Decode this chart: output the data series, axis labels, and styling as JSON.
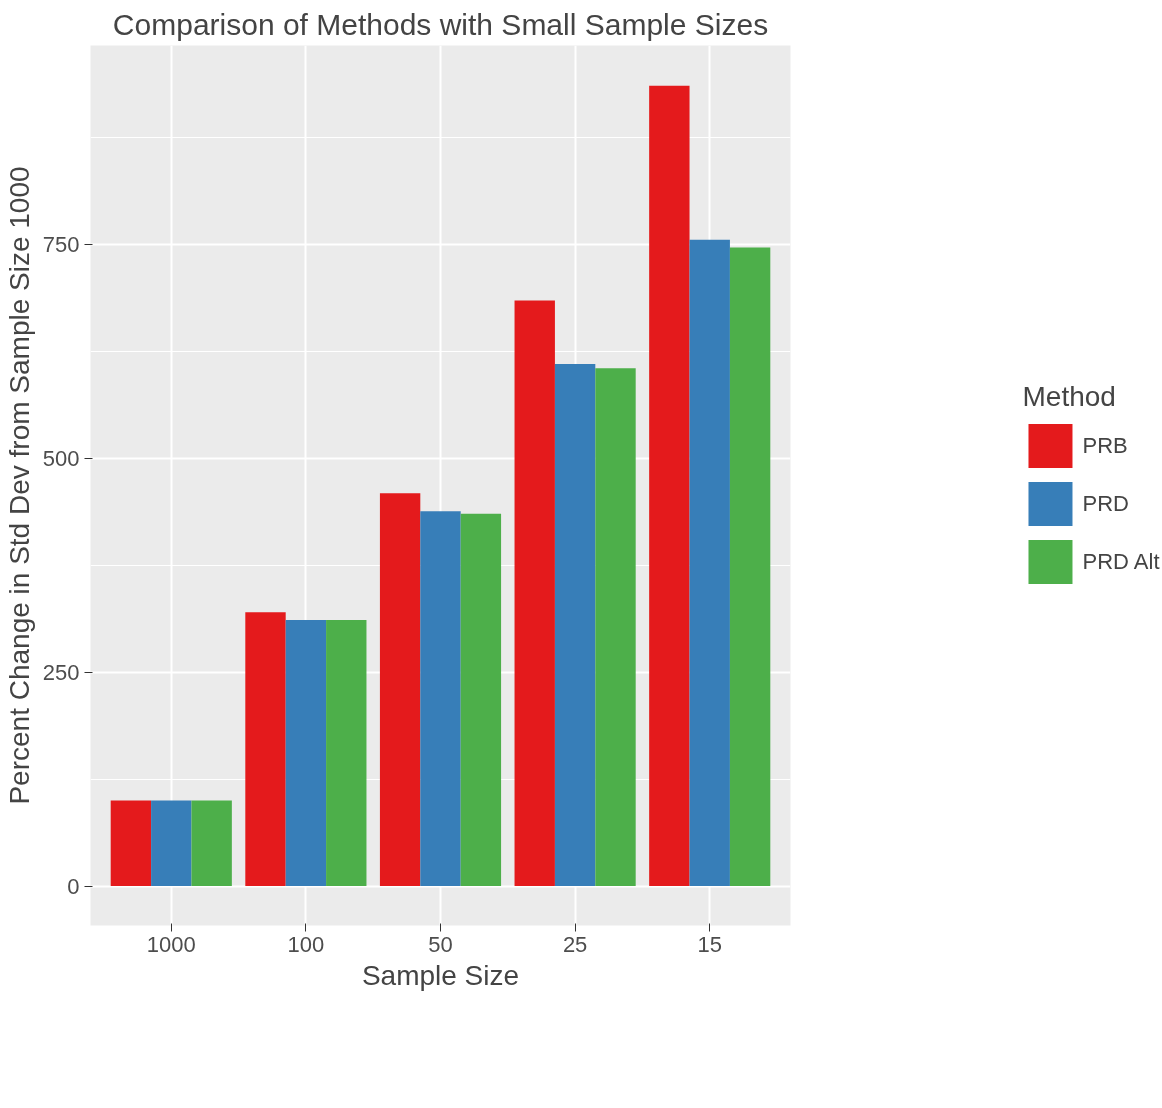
{
  "chart_data": {
    "type": "bar",
    "title": "Comparison of Methods with Small Sample Sizes",
    "xlabel": "Sample Size",
    "ylabel": "Percent Change in Std Dev from Sample Size 1000",
    "legend_title": "Method",
    "categories": [
      "1000",
      "100",
      "50",
      "25",
      "15"
    ],
    "series": [
      {
        "name": "PRB",
        "color": "#e41a1c",
        "values": [
          100,
          320,
          459,
          684,
          935
        ]
      },
      {
        "name": "PRD",
        "color": "#377eb8",
        "values": [
          100,
          311,
          438,
          610,
          755
        ]
      },
      {
        "name": "PRD Alt",
        "color": "#4daf4a",
        "values": [
          100,
          311,
          435,
          605,
          746
        ]
      }
    ],
    "ylim": [
      -46,
      982
    ],
    "yticks": [
      0,
      250,
      500,
      750
    ],
    "grid": true,
    "legend": "right"
  }
}
